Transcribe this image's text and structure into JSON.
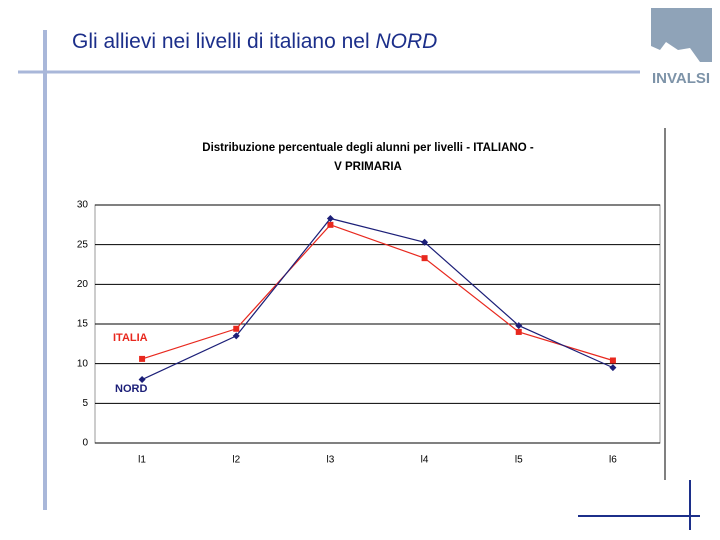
{
  "slide_title": "Gli allievi nei livelli di italiano nel",
  "slide_title_emphasis": "NORD",
  "logo": "INVALSI",
  "chart_data": {
    "type": "line",
    "title": [
      "Distribuzione percentuale degli alunni per livelli - ITALIANO -",
      "V PRIMARIA"
    ],
    "categories": [
      "l1",
      "l2",
      "l3",
      "l4",
      "l5",
      "l6"
    ],
    "series": [
      {
        "name": "ITALIA",
        "color": "#e8281e",
        "marker": "square",
        "values": [
          10.6,
          14.4,
          27.5,
          23.3,
          14,
          10.4
        ]
      },
      {
        "name": "NORD",
        "color": "#1c1f78",
        "marker": "diamond",
        "values": [
          8,
          13.5,
          28.3,
          25.3,
          14.8,
          9.5
        ]
      }
    ],
    "ylim": [
      0,
      30
    ],
    "yticks": [
      0,
      5,
      10,
      15,
      20,
      25,
      30
    ],
    "grid": true
  }
}
